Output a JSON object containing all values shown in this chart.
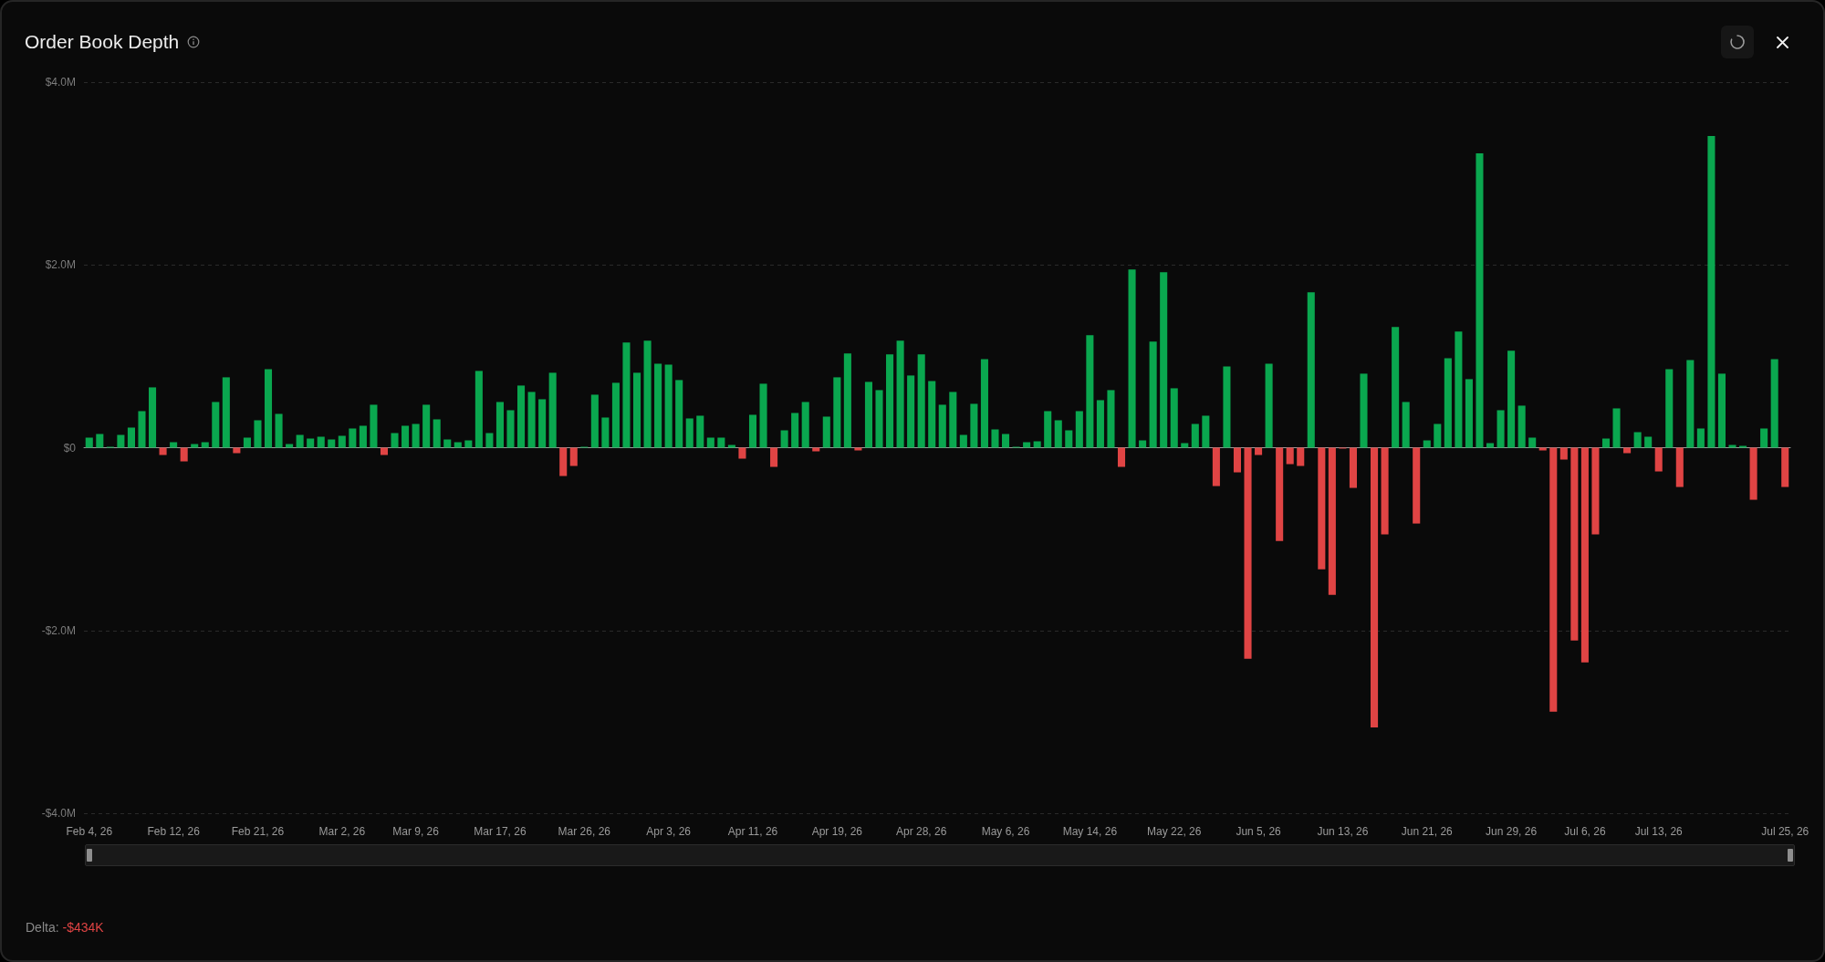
{
  "chart_data": {
    "type": "bar",
    "title": "Order Book Depth",
    "categories": [
      "Feb 4, 26",
      null,
      null,
      null,
      null,
      null,
      null,
      null,
      "Feb 12, 26",
      null,
      null,
      null,
      null,
      null,
      null,
      null,
      "Feb 21, 26",
      null,
      null,
      null,
      null,
      null,
      null,
      null,
      "Mar 2, 26",
      null,
      null,
      null,
      null,
      null,
      null,
      "Mar 9, 26",
      null,
      null,
      null,
      null,
      null,
      null,
      null,
      "Mar 17, 26",
      null,
      null,
      null,
      null,
      null,
      null,
      null,
      "Mar 26, 26",
      null,
      null,
      null,
      null,
      null,
      null,
      null,
      "Apr 3, 26",
      null,
      null,
      null,
      null,
      null,
      null,
      null,
      "Apr 11, 26",
      null,
      null,
      null,
      null,
      null,
      null,
      null,
      "Apr 19, 26",
      null,
      null,
      null,
      null,
      null,
      null,
      null,
      "Apr 28, 26",
      null,
      null,
      null,
      null,
      null,
      null,
      null,
      "May 6, 26",
      null,
      null,
      null,
      null,
      null,
      null,
      null,
      "May 14, 26",
      null,
      null,
      null,
      null,
      null,
      null,
      null,
      "May 22, 26",
      null,
      null,
      null,
      null,
      null,
      null,
      null,
      "Jun 5, 26",
      null,
      null,
      null,
      null,
      null,
      null,
      null,
      "Jun 13, 26",
      null,
      null,
      null,
      null,
      null,
      null,
      null,
      "Jun 21, 26",
      null,
      null,
      null,
      null,
      null,
      null,
      null,
      "Jun 29, 26",
      null,
      null,
      null,
      null,
      null,
      null,
      "Jul 6, 26",
      null,
      null,
      null,
      null,
      null,
      null,
      "Jul 13, 26",
      null,
      null,
      null,
      null,
      null,
      null,
      null,
      null,
      null,
      null,
      null,
      "Jul 25, 26"
    ],
    "values": [
      0.11,
      0.15,
      0.01,
      0.14,
      0.22,
      0.4,
      0.66,
      -0.08,
      0.06,
      -0.15,
      0.04,
      0.06,
      0.5,
      0.77,
      -0.06,
      0.11,
      0.3,
      0.86,
      0.37,
      0.04,
      0.14,
      0.1,
      0.12,
      0.09,
      0.13,
      0.21,
      0.24,
      0.47,
      -0.08,
      0.16,
      0.24,
      0.26,
      0.47,
      0.31,
      0.09,
      0.06,
      0.08,
      0.84,
      0.16,
      0.5,
      0.41,
      0.68,
      0.61,
      0.53,
      0.82,
      -0.31,
      -0.2,
      0.01,
      0.58,
      0.33,
      0.71,
      1.15,
      0.82,
      1.17,
      0.92,
      0.91,
      0.74,
      0.32,
      0.35,
      0.11,
      0.11,
      0.03,
      -0.12,
      0.36,
      0.7,
      -0.21,
      0.19,
      0.38,
      0.5,
      -0.04,
      0.34,
      0.77,
      1.03,
      -0.03,
      0.72,
      0.63,
      1.02,
      1.17,
      0.79,
      1.02,
      0.73,
      0.47,
      0.61,
      0.14,
      0.48,
      0.97,
      0.2,
      0.15,
      0.01,
      0.06,
      0.07,
      0.4,
      0.3,
      0.19,
      0.4,
      1.23,
      0.52,
      0.63,
      -0.21,
      1.95,
      0.08,
      1.16,
      1.92,
      0.65,
      0.05,
      0.26,
      0.35,
      -0.42,
      0.89,
      -0.27,
      -2.31,
      -0.08,
      0.92,
      -1.02,
      -0.18,
      -0.2,
      1.7,
      -1.33,
      -1.61,
      -0.01,
      -0.44,
      0.81,
      -3.06,
      -0.95,
      1.32,
      0.5,
      -0.83,
      0.08,
      0.26,
      0.98,
      1.27,
      0.75,
      3.22,
      0.05,
      0.41,
      1.06,
      0.46,
      0.11,
      -0.03,
      -2.89,
      -0.13,
      -2.11,
      -2.35,
      -0.95,
      0.1,
      0.43,
      -0.06,
      0.17,
      0.12,
      -0.26,
      0.86,
      -0.43,
      0.96,
      0.21,
      3.41,
      0.81,
      0.03,
      0.02,
      -0.57,
      0.21,
      0.97,
      -0.43
    ],
    "colors": [
      "#0aa74f",
      "#0aa74f",
      "#0aa74f",
      "#0aa74f",
      "#0aa74f",
      "#0aa74f",
      "#0aa74f",
      "#e04444",
      "#0aa74f",
      "#e04444",
      "#0aa74f",
      "#0aa74f",
      "#0aa74f",
      "#0aa74f",
      "#e04444",
      "#0aa74f",
      "#0aa74f",
      "#0aa74f",
      "#0aa74f",
      "#0aa74f",
      "#0aa74f",
      "#0aa74f",
      "#0aa74f",
      "#0aa74f",
      "#0aa74f",
      "#0aa74f",
      "#0aa74f",
      "#0aa74f",
      "#e04444",
      "#0aa74f",
      "#0aa74f",
      "#0aa74f",
      "#0aa74f",
      "#0aa74f",
      "#0aa74f",
      "#0aa74f",
      "#0aa74f",
      "#0aa74f",
      "#0aa74f",
      "#0aa74f",
      "#0aa74f",
      "#0aa74f",
      "#0aa74f",
      "#0aa74f",
      "#0aa74f",
      "#e04444",
      "#e04444",
      "#0aa74f",
      "#0aa74f",
      "#0aa74f",
      "#0aa74f",
      "#0aa74f",
      "#0aa74f",
      "#0aa74f",
      "#0aa74f",
      "#0aa74f",
      "#0aa74f",
      "#0aa74f",
      "#0aa74f",
      "#0aa74f",
      "#0aa74f",
      "#0aa74f",
      "#e04444",
      "#0aa74f",
      "#0aa74f",
      "#e04444",
      "#0aa74f",
      "#0aa74f",
      "#0aa74f",
      "#e04444",
      "#0aa74f",
      "#0aa74f",
      "#0aa74f",
      "#e04444",
      "#0aa74f",
      "#0aa74f",
      "#0aa74f",
      "#0aa74f",
      "#0aa74f",
      "#0aa74f",
      "#0aa74f",
      "#0aa74f",
      "#0aa74f",
      "#0aa74f",
      "#0aa74f",
      "#0aa74f",
      "#0aa74f",
      "#0aa74f",
      "#0aa74f",
      "#0aa74f",
      "#0aa74f",
      "#0aa74f",
      "#0aa74f",
      "#0aa74f",
      "#0aa74f",
      "#0aa74f",
      "#0aa74f",
      "#0aa74f",
      "#e04444",
      "#0aa74f",
      "#0aa74f",
      "#0aa74f",
      "#0aa74f",
      "#0aa74f",
      "#0aa74f",
      "#0aa74f",
      "#0aa74f",
      "#e04444",
      "#0aa74f",
      "#e04444",
      "#e04444",
      "#e04444",
      "#0aa74f",
      "#e04444",
      "#e04444",
      "#e04444",
      "#0aa74f",
      "#e04444",
      "#e04444",
      "#e04444",
      "#e04444",
      "#0aa74f",
      "#e04444",
      "#e04444",
      "#0aa74f",
      "#0aa74f",
      "#e04444",
      "#0aa74f",
      "#0aa74f",
      "#0aa74f",
      "#0aa74f",
      "#0aa74f",
      "#0aa74f",
      "#0aa74f",
      "#0aa74f",
      "#0aa74f",
      "#0aa74f",
      "#0aa74f",
      "#e04444",
      "#e04444",
      "#e04444",
      "#e04444",
      "#e04444",
      "#e04444",
      "#0aa74f",
      "#0aa74f",
      "#e04444",
      "#0aa74f",
      "#0aa74f",
      "#e04444",
      "#0aa74f",
      "#e04444",
      "#0aa74f",
      "#0aa74f",
      "#0aa74f",
      "#0aa74f",
      "#0aa74f",
      "#0aa74f",
      "#e04444",
      "#0aa74f",
      "#0aa74f",
      "#e04444"
    ],
    "ylim": [
      -4,
      4
    ],
    "yticks": [
      {
        "value": -4,
        "label": "-$4.0M"
      },
      {
        "value": -2,
        "label": "-$2.0M"
      },
      {
        "value": 0,
        "label": "$0"
      },
      {
        "value": 2,
        "label": "$2.0M"
      },
      {
        "value": 4,
        "label": "$4.0M"
      }
    ],
    "grid": "y",
    "annotations": [
      "Delta: -$434K"
    ]
  }
}
